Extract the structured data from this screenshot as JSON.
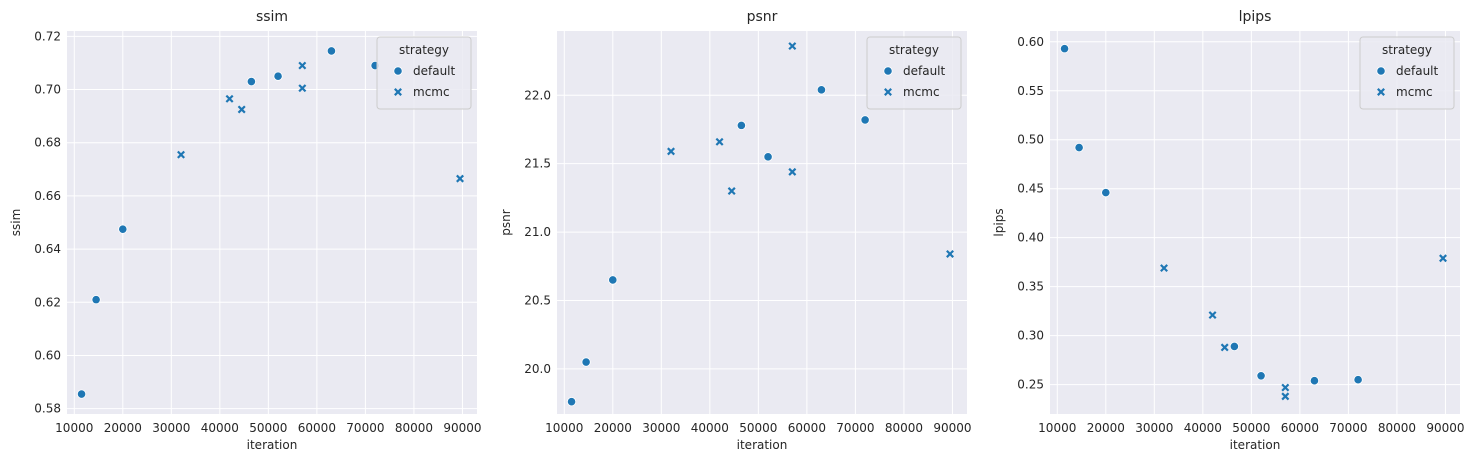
{
  "chart_data": [
    {
      "type": "scatter",
      "title": "ssim",
      "xlabel": "iteration",
      "ylabel": "ssim",
      "xlim": [
        8500,
        93000
      ],
      "ylim": [
        0.578,
        0.722
      ],
      "xticks": [
        10000,
        20000,
        30000,
        40000,
        50000,
        60000,
        70000,
        80000,
        90000
      ],
      "yticks": [
        0.58,
        0.6,
        0.62,
        0.64,
        0.66,
        0.68,
        0.7,
        0.72
      ],
      "ytick_labels": [
        "0.58",
        "0.60",
        "0.62",
        "0.64",
        "0.66",
        "0.68",
        "0.70",
        "0.72"
      ],
      "legend_title": "strategy",
      "legend_position": "top-right",
      "grid": true,
      "series": [
        {
          "name": "default",
          "marker": "circle",
          "x": [
            11500,
            14500,
            20000,
            46500,
            52000,
            63000,
            72000
          ],
          "y": [
            0.5855,
            0.621,
            0.6475,
            0.703,
            0.705,
            0.7145,
            0.709
          ]
        },
        {
          "name": "mcmc",
          "marker": "x",
          "x": [
            32000,
            42000,
            44500,
            57000,
            57000,
            89500
          ],
          "y": [
            0.6755,
            0.6965,
            0.6925,
            0.709,
            0.7005,
            0.6665
          ]
        }
      ]
    },
    {
      "type": "scatter",
      "title": "psnr",
      "xlabel": "iteration",
      "ylabel": "psnr",
      "xlim": [
        8500,
        93000
      ],
      "ylim": [
        19.67,
        22.47
      ],
      "xticks": [
        10000,
        20000,
        30000,
        40000,
        50000,
        60000,
        70000,
        80000,
        90000
      ],
      "yticks": [
        20.0,
        20.5,
        21.0,
        21.5,
        22.0
      ],
      "ytick_labels": [
        "20.0",
        "20.5",
        "21.0",
        "21.5",
        "22.0"
      ],
      "legend_title": "strategy",
      "legend_position": "top-right",
      "grid": true,
      "series": [
        {
          "name": "default",
          "marker": "circle",
          "x": [
            11500,
            14500,
            20000,
            46500,
            52000,
            63000,
            72000
          ],
          "y": [
            19.76,
            20.05,
            20.65,
            21.78,
            21.55,
            22.04,
            21.82
          ]
        },
        {
          "name": "mcmc",
          "marker": "x",
          "x": [
            32000,
            42000,
            44500,
            57000,
            57000,
            89500
          ],
          "y": [
            21.59,
            21.66,
            21.3,
            22.36,
            21.44,
            20.84
          ]
        }
      ]
    },
    {
      "type": "scatter",
      "title": "lpips",
      "xlabel": "iteration",
      "ylabel": "lpips",
      "xlim": [
        8500,
        93000
      ],
      "ylim": [
        0.22,
        0.611
      ],
      "xticks": [
        10000,
        20000,
        30000,
        40000,
        50000,
        60000,
        70000,
        80000,
        90000
      ],
      "yticks": [
        0.25,
        0.3,
        0.35,
        0.4,
        0.45,
        0.5,
        0.55,
        0.6
      ],
      "ytick_labels": [
        "0.25",
        "0.30",
        "0.35",
        "0.40",
        "0.45",
        "0.50",
        "0.55",
        "0.60"
      ],
      "legend_title": "strategy",
      "legend_position": "top-right",
      "grid": true,
      "series": [
        {
          "name": "default",
          "marker": "circle",
          "x": [
            11500,
            14500,
            20000,
            46500,
            52000,
            63000,
            72000
          ],
          "y": [
            0.593,
            0.492,
            0.446,
            0.289,
            0.259,
            0.254,
            0.255
          ]
        },
        {
          "name": "mcmc",
          "marker": "x",
          "x": [
            32000,
            42000,
            44500,
            57000,
            57000,
            89500
          ],
          "y": [
            0.369,
            0.321,
            0.288,
            0.247,
            0.238,
            0.379
          ]
        }
      ]
    }
  ],
  "colors": {
    "marker": "#1f77b4",
    "plot_background": "#eaeaf2",
    "grid": "#ffffff",
    "text": "#262626"
  }
}
